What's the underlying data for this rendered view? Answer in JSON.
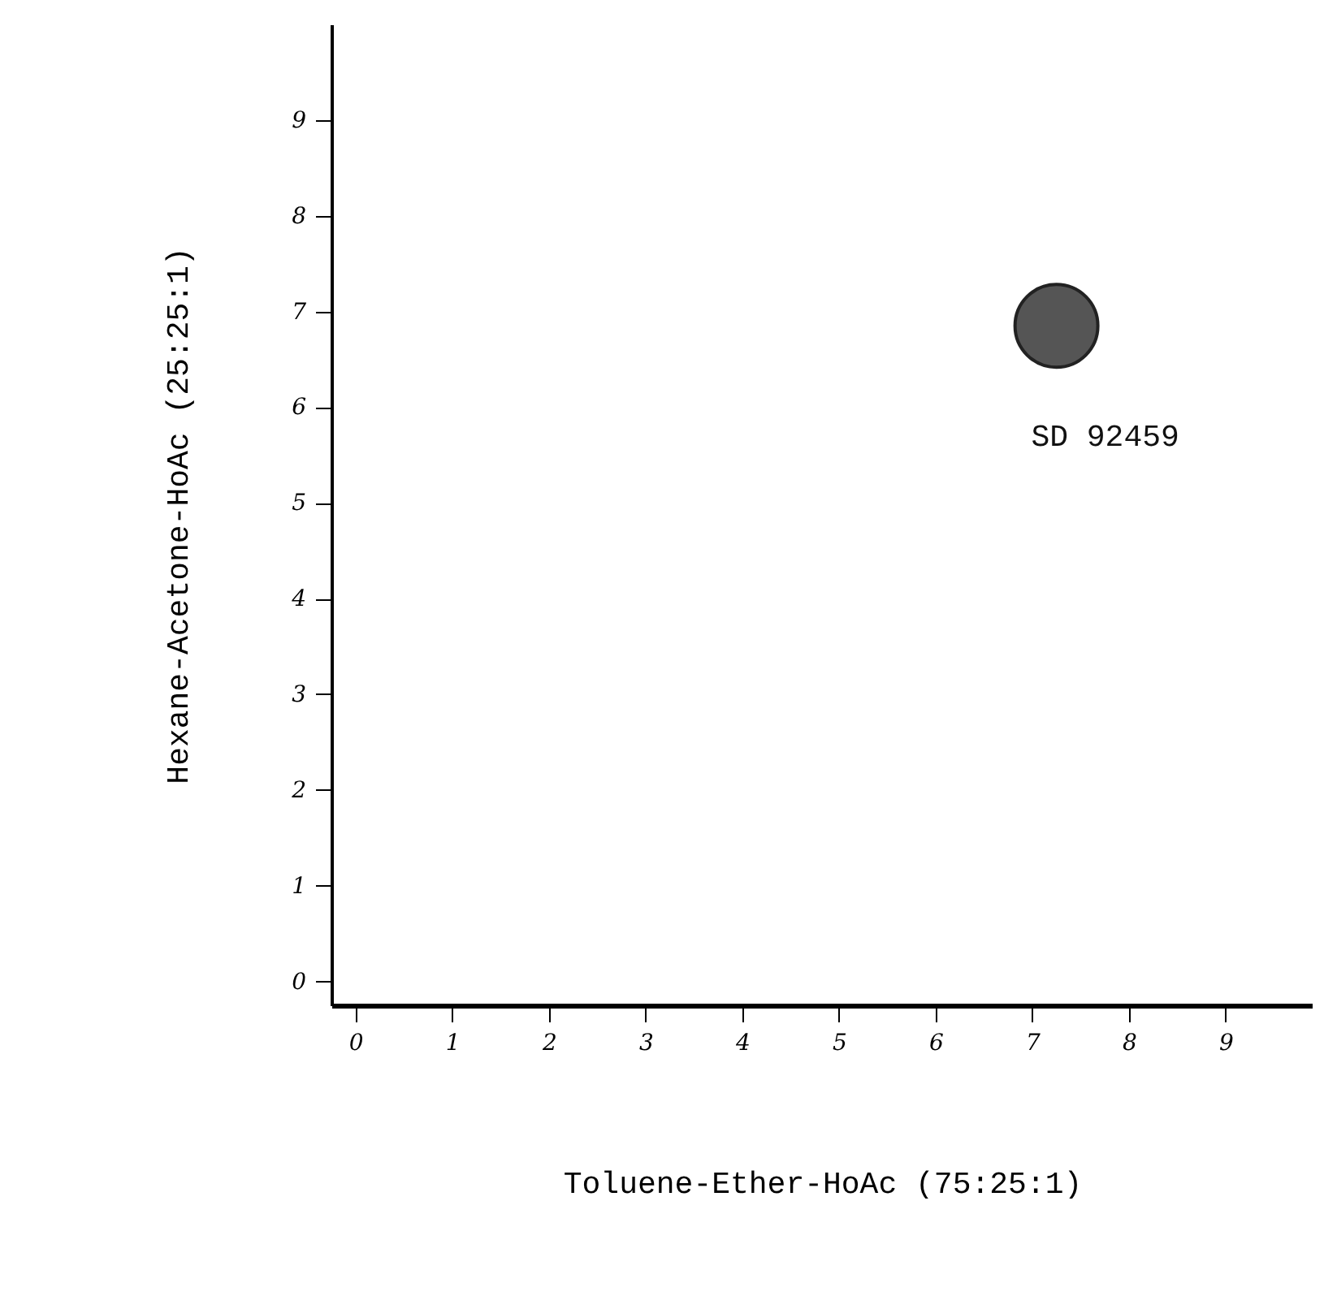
{
  "chart_data": {
    "type": "scatter",
    "xlabel": "Toluene-Ether-HoAc (75:25:1)",
    "ylabel": "Hexane-Acetone-HoAc (25:25:1)",
    "x": [
      7.25
    ],
    "series": [
      {
        "color": "#555555",
        "values": [
          6.85
        ]
      }
    ],
    "marker": "circle",
    "annotations": [
      "SD 92459"
    ],
    "xlim": [
      -0.25,
      9.9
    ],
    "xticks": [
      0,
      1,
      2,
      3,
      4,
      5,
      6,
      7,
      8,
      9
    ],
    "ylim": [
      -0.25,
      10
    ],
    "yticks": [
      0,
      1,
      2,
      3,
      4,
      5,
      6,
      7,
      8,
      9
    ],
    "grid": false
  }
}
